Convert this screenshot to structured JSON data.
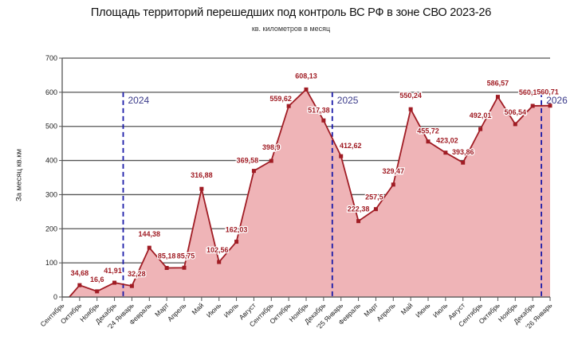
{
  "header": {
    "title": "Площадь территорий перешедших под контроль ВС РФ в зоне СВО 2023-26",
    "subtitle": "кв. километров в месяц"
  },
  "axis": {
    "ylabel": "За месяц кв.км"
  },
  "colors": {
    "line": "#a01c24",
    "fill": "#efb4b7",
    "marker": "#a01c24",
    "divider": "#1a1aa8",
    "grid": "#555555",
    "label": "#a01c24"
  },
  "chart_data": {
    "type": "area",
    "title": "Площадь территорий перешедших под контроль ВС РФ в зоне СВО 2023-26",
    "subtitle": "кв. километров в месяц",
    "xlabel": "",
    "ylabel": "За месяц кв.км",
    "ylim": [
      0,
      700
    ],
    "yticks": [
      0,
      100,
      200,
      300,
      400,
      500,
      600,
      700
    ],
    "grid": true,
    "legend": null,
    "categories": [
      "Сентябрь",
      "Октябрь",
      "Ноябрь",
      "Декабрь",
      "'24 Январь",
      "Февраль",
      "Март",
      "Апрель",
      "Май",
      "Июнь",
      "Июль",
      "Август",
      "Сентябрь",
      "Октябрь",
      "Ноябрь",
      "Декабрь",
      "'25 Январь",
      "Февраль",
      "Март",
      "Апрель",
      "Май",
      "Июнь",
      "Июль",
      "Август",
      "Сентябрь",
      "Октябрь",
      "Ноябрь",
      "Декабрь",
      "'26 Январь"
    ],
    "values": [
      0,
      34.68,
      16.6,
      41.91,
      32.28,
      144.38,
      85.18,
      85.75,
      316.88,
      102.56,
      162.03,
      369.58,
      398.9,
      559.62,
      608.13,
      517.38,
      412.62,
      222.38,
      257.5,
      329.47,
      550.24,
      455.72,
      423.02,
      393.86,
      492.01,
      586.57,
      506.54,
      560.1,
      560.71
    ],
    "data_labels": [
      "",
      "34,68",
      "16,6",
      "41,91",
      "32,28",
      "144,38",
      "85,18",
      "85,75",
      "316,88",
      "102,56",
      "162,03",
      "369,58",
      "398,9",
      "559,62",
      "608,13",
      "517,38",
      "412,62",
      "222,38",
      "257,5",
      "329,47",
      "550,24",
      "455,72",
      "423,02",
      "393,86",
      "492,01",
      "586,57",
      "506,54",
      "560,1",
      "560,71"
    ],
    "annotations": [
      {
        "text": "2024",
        "between": [
          3,
          4
        ]
      },
      {
        "text": "2025",
        "between": [
          15,
          16
        ]
      },
      {
        "text": "2026",
        "between": [
          27,
          28
        ]
      }
    ]
  }
}
